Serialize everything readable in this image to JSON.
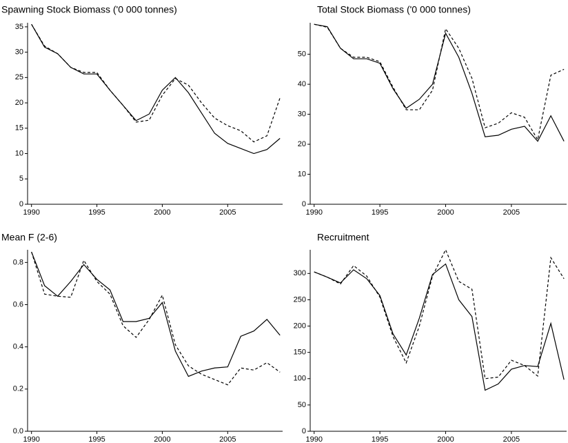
{
  "chart_data": [
    {
      "type": "line",
      "title": "Spawning Stock Biomass ('0 000 tonnes)",
      "x": [
        1990,
        1991,
        1992,
        1993,
        1994,
        1995,
        1996,
        1997,
        1998,
        1999,
        2000,
        2001,
        2002,
        2003,
        2004,
        2005,
        2006,
        2007,
        2008,
        2009
      ],
      "series": [
        {
          "color": "#000000",
          "dash": "solid",
          "values": [
            35.5,
            31,
            29.7,
            27,
            25.7,
            25.7,
            22.5,
            19.5,
            16.5,
            17.8,
            22.5,
            25,
            22,
            18,
            14,
            12,
            11,
            10,
            10.8,
            13
          ]
        },
        {
          "color": "#000000",
          "dash": "dashed",
          "values": [
            35.5,
            31.2,
            29.7,
            27,
            26,
            26,
            22.5,
            19.5,
            16.2,
            16.6,
            21.5,
            24.8,
            23.5,
            20,
            17,
            15.5,
            14.5,
            12.3,
            13.5,
            21
          ]
        }
      ],
      "xlim": [
        1989.7,
        2009.2
      ],
      "ylim": [
        0,
        35.8
      ],
      "xticks": [
        1990,
        1995,
        2000,
        2005
      ],
      "yticks": [
        0,
        5,
        10,
        15,
        20,
        25,
        30,
        35
      ]
    },
    {
      "type": "line",
      "title": "Total Stock Biomass ('0 000 tonnes)",
      "x": [
        1990,
        1991,
        1992,
        1993,
        1994,
        1995,
        1996,
        1997,
        1998,
        1999,
        2000,
        2001,
        2002,
        2003,
        2004,
        2005,
        2006,
        2007,
        2008,
        2009
      ],
      "series": [
        {
          "color": "#000000",
          "dash": "solid",
          "values": [
            60,
            59.2,
            52,
            48.5,
            48.5,
            47,
            38.5,
            32,
            35,
            40,
            57,
            49,
            37,
            22.5,
            23,
            25,
            26,
            21,
            29.5,
            21
          ]
        },
        {
          "color": "#000000",
          "dash": "dashed",
          "values": [
            60,
            59,
            52,
            49,
            49,
            47.5,
            39,
            31.5,
            31.5,
            38,
            58.5,
            52,
            42,
            25.5,
            27,
            30.5,
            29,
            21.5,
            43,
            45
          ]
        }
      ],
      "xlim": [
        1989.7,
        2009.2
      ],
      "ylim": [
        0,
        60.5
      ],
      "xticks": [
        1990,
        1995,
        2000,
        2005
      ],
      "yticks": [
        0,
        10,
        20,
        30,
        40,
        50
      ]
    },
    {
      "type": "line",
      "title": "Mean F (2-6)",
      "x": [
        1990,
        1991,
        1992,
        1993,
        1994,
        1995,
        1996,
        1997,
        1998,
        1999,
        2000,
        2001,
        2002,
        2003,
        2004,
        2005,
        2006,
        2007,
        2008,
        2009
      ],
      "series": [
        {
          "color": "#000000",
          "dash": "solid",
          "values": [
            0.85,
            0.69,
            0.64,
            0.71,
            0.79,
            0.72,
            0.67,
            0.52,
            0.52,
            0.535,
            0.61,
            0.38,
            0.26,
            0.285,
            0.3,
            0.305,
            0.45,
            0.475,
            0.53,
            0.455
          ]
        },
        {
          "color": "#000000",
          "dash": "dashed",
          "values": [
            0.85,
            0.65,
            0.64,
            0.635,
            0.81,
            0.71,
            0.65,
            0.5,
            0.445,
            0.53,
            0.645,
            0.41,
            0.31,
            0.27,
            0.245,
            0.22,
            0.3,
            0.29,
            0.325,
            0.28
          ]
        }
      ],
      "xlim": [
        1989.7,
        2009.2
      ],
      "ylim": [
        0,
        0.86
      ],
      "xticks": [
        1990,
        1995,
        2000,
        2005
      ],
      "yticks": [
        {
          "value": 0,
          "label": "0.0"
        },
        0.2,
        0.4,
        0.6,
        0.8
      ]
    },
    {
      "type": "line",
      "title": "Recruitment",
      "x": [
        1990,
        1991,
        1992,
        1993,
        1994,
        1995,
        1996,
        1997,
        1998,
        1999,
        2000,
        2001,
        2002,
        2003,
        2004,
        2005,
        2006,
        2007,
        2008,
        2009
      ],
      "series": [
        {
          "color": "#000000",
          "dash": "solid",
          "values": [
            303,
            293,
            282,
            307,
            290,
            258,
            185,
            145,
            215,
            298,
            318,
            250,
            218,
            78,
            90,
            118,
            125,
            123,
            205,
            98
          ]
        },
        {
          "color": "#000000",
          "dash": "dashed",
          "values": [
            303,
            293,
            280,
            315,
            295,
            255,
            180,
            130,
            200,
            295,
            345,
            285,
            270,
            100,
            103,
            135,
            125,
            105,
            330,
            290
          ]
        }
      ],
      "xlim": [
        1989.7,
        2009.2
      ],
      "ylim": [
        0,
        345
      ],
      "xticks": [
        1990,
        1995,
        2000,
        2005
      ],
      "yticks": [
        0,
        50,
        100,
        150,
        200,
        250,
        300
      ]
    }
  ]
}
